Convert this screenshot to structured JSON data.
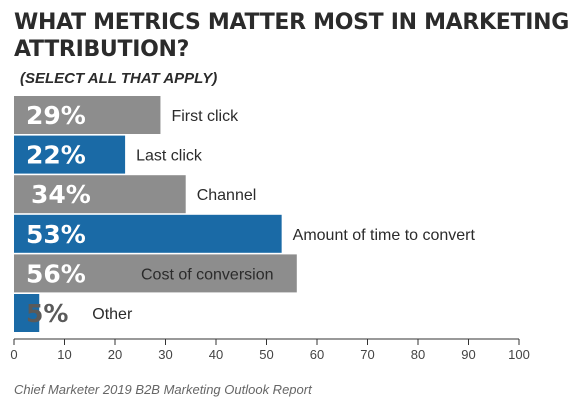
{
  "chart_data": {
    "type": "bar",
    "orientation": "horizontal",
    "title": "WHAT METRICS MATTER MOST IN MARKETING ATTRIBUTION?",
    "subtitle": "(SELECT ALL THAT APPLY)",
    "categories": [
      "First click",
      "Last click",
      "Channel",
      "Amount of time to convert",
      "Cost of conversion",
      "Other"
    ],
    "values": [
      29,
      22,
      34,
      53,
      56,
      5
    ],
    "value_labels": [
      "29%",
      "22%",
      "34%",
      "53%",
      "56%",
      "5%"
    ],
    "bar_colors": [
      "#8d8d8d",
      "#1a6aa6",
      "#8d8d8d",
      "#1a6aa6",
      "#8d8d8d",
      "#1a6aa6"
    ],
    "xlim": [
      0,
      100
    ],
    "xticks": [
      0,
      10,
      20,
      30,
      40,
      50,
      60,
      70,
      80,
      90,
      100
    ],
    "grid": false,
    "source": "Chief Marketer 2019 B2B Marketing Outlook Report"
  }
}
